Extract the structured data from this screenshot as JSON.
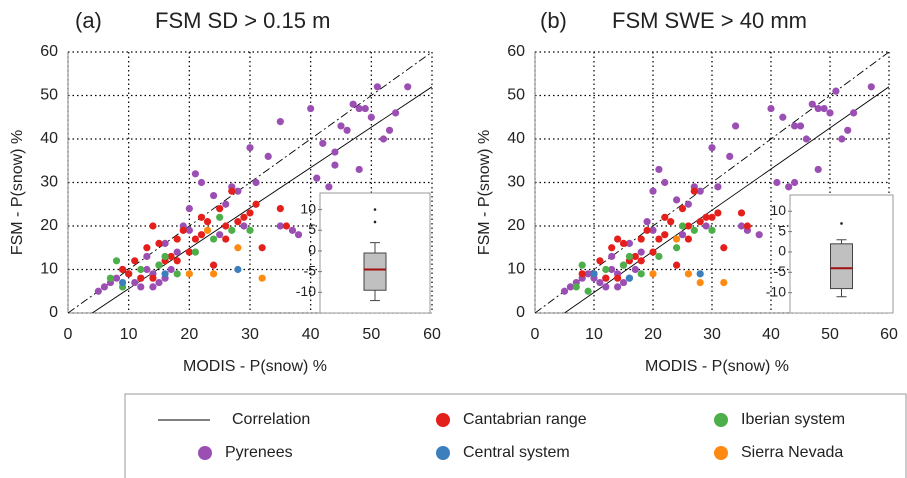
{
  "chart_data": [
    {
      "type": "scatter",
      "panel": "(a)",
      "title": "FSM SD > 0.15 m",
      "x_label": "MODIS - P(snow) %",
      "y_label": "FSM - P(snow) %",
      "xlim": [
        0,
        60
      ],
      "ylim": [
        0,
        60
      ],
      "xticks": [
        0,
        10,
        20,
        30,
        40,
        50,
        60
      ],
      "yticks": [
        0,
        10,
        20,
        30,
        40,
        50,
        60
      ],
      "grid": true,
      "correlation": {
        "name": "Correlation",
        "color": "#000000",
        "x": [
          4,
          60
        ],
        "y": [
          0,
          52
        ]
      },
      "one_to_one": {
        "color": "#000000",
        "x": [
          0,
          60
        ],
        "y": [
          0,
          60
        ]
      },
      "series": [
        {
          "name": "Pyrenees",
          "color": "#9b4fb3",
          "x": [
            5,
            6,
            7,
            8,
            9,
            10,
            11,
            12,
            12,
            13,
            14,
            14,
            15,
            15,
            16,
            17,
            18,
            19,
            20,
            21,
            22,
            24,
            25,
            26,
            27,
            28,
            30,
            31,
            33,
            35,
            37,
            38,
            40,
            41,
            42,
            43,
            44,
            45,
            46,
            47,
            48,
            49,
            50,
            51,
            52,
            53,
            54,
            56,
            44,
            48,
            35,
            29,
            20,
            16,
            13
          ],
          "values": [
            5,
            6,
            7,
            8,
            10,
            9,
            7,
            6,
            8,
            10,
            9,
            6,
            11,
            7,
            8,
            10,
            14,
            20,
            24,
            32,
            30,
            27,
            18,
            25,
            29,
            28,
            38,
            30,
            36,
            44,
            19,
            18,
            47,
            31,
            39,
            29,
            37,
            43,
            42,
            48,
            33,
            47,
            45,
            52,
            40,
            42,
            46,
            52,
            34,
            47,
            20,
            20,
            19,
            16,
            13
          ]
        },
        {
          "name": "Cantabrian range",
          "color": "#e3201b",
          "x": [
            9,
            10,
            11,
            12,
            13,
            14,
            15,
            16,
            17,
            18,
            19,
            20,
            21,
            22,
            23,
            24,
            25,
            26,
            27,
            28,
            29,
            31,
            32,
            35,
            36,
            14,
            18,
            22,
            26,
            30
          ],
          "values": [
            10,
            9,
            12,
            8,
            15,
            20,
            16,
            12,
            13,
            17,
            19,
            14,
            17,
            22,
            21,
            11,
            24,
            20,
            28,
            21,
            22,
            25,
            15,
            24,
            20,
            8,
            12,
            18,
            17,
            23
          ]
        },
        {
          "name": "Iberian system",
          "color": "#4caf4a",
          "x": [
            7,
            8,
            9,
            12,
            15,
            16,
            18,
            21,
            24,
            25,
            27,
            30
          ],
          "values": [
            8,
            12,
            6,
            10,
            11,
            13,
            9,
            14,
            17,
            22,
            19,
            19
          ]
        },
        {
          "name": "Central system",
          "color": "#3b7fbf",
          "x": [
            9,
            16,
            28
          ],
          "values": [
            7,
            9,
            10
          ]
        },
        {
          "name": "Sierra Nevada",
          "color": "#ff8a12",
          "x": [
            20,
            23,
            24,
            28,
            32
          ],
          "values": [
            9,
            19,
            9,
            15,
            8
          ]
        }
      ],
      "inset": {
        "type": "box",
        "ylim": [
          -15,
          14
        ],
        "yticks": [
          -10,
          -5,
          0,
          5,
          10
        ],
        "color": "#c0c0c0",
        "median_color": "#a01010",
        "whislo": -12,
        "q1": -9.5,
        "med": -4.5,
        "q3": -0.5,
        "whishi": 2,
        "fliers": [
          7,
          10
        ]
      }
    },
    {
      "type": "scatter",
      "panel": "(b)",
      "title": "FSM SWE > 40 mm",
      "x_label": "MODIS - P(snow) %",
      "y_label": "FSM - P(snow) %",
      "xlim": [
        0,
        60
      ],
      "ylim": [
        0,
        60
      ],
      "xticks": [
        0,
        10,
        20,
        30,
        40,
        50,
        60
      ],
      "yticks": [
        0,
        10,
        20,
        30,
        40,
        50,
        60
      ],
      "grid": true,
      "correlation": {
        "name": "Correlation",
        "color": "#000000",
        "x": [
          5,
          60
        ],
        "y": [
          0,
          52
        ]
      },
      "one_to_one": {
        "color": "#000000",
        "x": [
          0,
          60
        ],
        "y": [
          0,
          60
        ]
      },
      "series": [
        {
          "name": "Pyrenees",
          "color": "#9b4fb3",
          "x": [
            5,
            6,
            7,
            8,
            9,
            10,
            11,
            12,
            12,
            13,
            14,
            14,
            15,
            15,
            16,
            17,
            18,
            19,
            20,
            21,
            22,
            24,
            25,
            26,
            27,
            28,
            30,
            31,
            33,
            34,
            36,
            38,
            40,
            41,
            42,
            43,
            44,
            45,
            46,
            47,
            48,
            49,
            50,
            51,
            52,
            53,
            54,
            57,
            44,
            48,
            35,
            29,
            20,
            16,
            13
          ],
          "values": [
            5,
            6,
            7,
            8,
            9,
            8,
            7,
            6,
            8,
            10,
            9,
            6,
            11,
            7,
            8,
            10,
            14,
            21,
            28,
            33,
            30,
            26,
            18,
            25,
            29,
            28,
            38,
            29,
            36,
            43,
            19,
            18,
            47,
            30,
            45,
            29,
            43,
            43,
            40,
            48,
            33,
            47,
            46,
            51,
            40,
            42,
            46,
            52,
            30,
            47,
            20,
            20,
            19,
            16,
            13
          ]
        },
        {
          "name": "Cantabrian range",
          "color": "#e3201b",
          "x": [
            8,
            10,
            11,
            12,
            13,
            14,
            15,
            16,
            17,
            18,
            19,
            20,
            21,
            22,
            23,
            24,
            25,
            26,
            27,
            28,
            29,
            31,
            32,
            35,
            36,
            14,
            18,
            22,
            26,
            30
          ],
          "values": [
            9,
            9,
            12,
            8,
            15,
            17,
            16,
            12,
            13,
            17,
            19,
            14,
            17,
            22,
            21,
            11,
            24,
            20,
            28,
            21,
            22,
            23,
            15,
            23,
            20,
            8,
            12,
            18,
            17,
            22
          ]
        },
        {
          "name": "Iberian system",
          "color": "#4caf4a",
          "x": [
            7,
            8,
            9,
            12,
            15,
            16,
            18,
            21,
            24,
            25,
            27,
            30
          ],
          "values": [
            6,
            11,
            5,
            10,
            11,
            13,
            9,
            13,
            15,
            20,
            19,
            19
          ]
        },
        {
          "name": "Central system",
          "color": "#3b7fbf",
          "x": [
            10,
            16,
            28
          ],
          "values": [
            9,
            8,
            9
          ]
        },
        {
          "name": "Sierra Nevada",
          "color": "#ff8a12",
          "x": [
            20,
            24,
            26,
            28,
            32
          ],
          "values": [
            9,
            17,
            9,
            7,
            7
          ]
        }
      ],
      "inset": {
        "type": "box",
        "ylim": [
          -15,
          14
        ],
        "yticks": [
          -10,
          -5,
          0,
          5,
          10
        ],
        "color": "#c0c0c0",
        "median_color": "#a01010",
        "whislo": -11,
        "q1": -9,
        "med": -4,
        "q3": 2,
        "whishi": 3,
        "fliers": [
          7
        ]
      }
    }
  ]
}
